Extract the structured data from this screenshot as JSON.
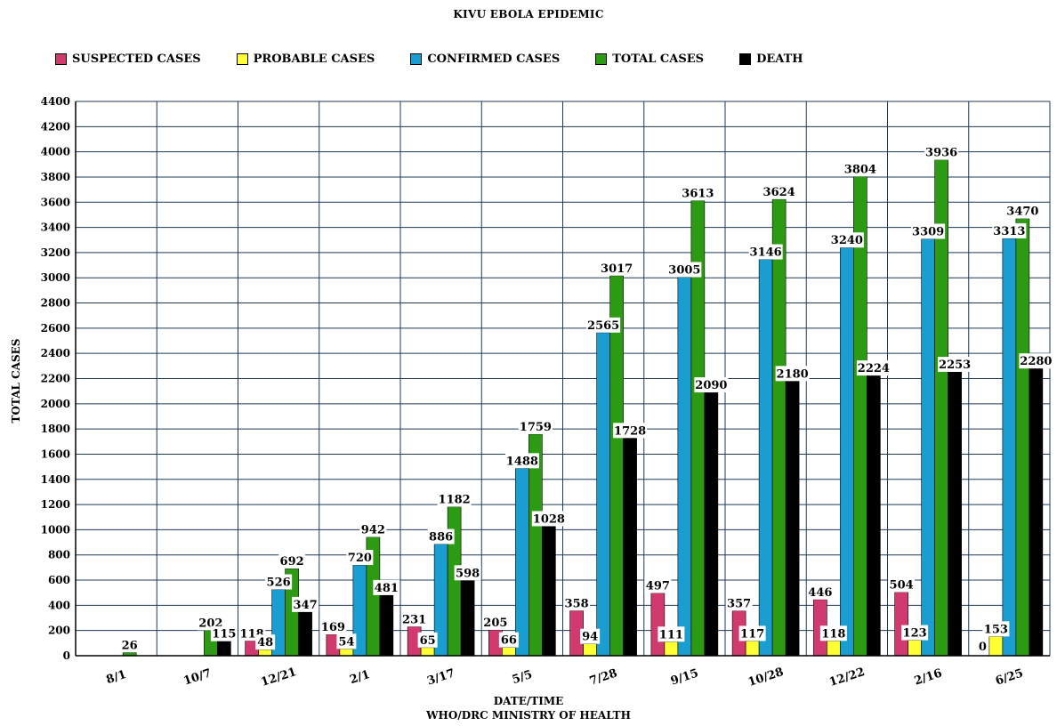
{
  "chart_data": {
    "type": "bar",
    "title": "KIVU EBOLA EPIDEMIC",
    "xlabel": "DATE/TIME",
    "source": "WHO/DRC MINISTRY OF HEALTH",
    "ylabel": "TOTAL CASES",
    "ylim": [
      0,
      4400
    ],
    "yticks": [
      0,
      200,
      400,
      600,
      800,
      1000,
      1200,
      1400,
      1600,
      1800,
      2000,
      2200,
      2400,
      2600,
      2800,
      3000,
      3200,
      3400,
      3600,
      3800,
      4000,
      4200,
      4400
    ],
    "grid": true,
    "legend_position": "top",
    "categories": [
      "8/1",
      "10/7",
      "12/21",
      "2/1",
      "3/17",
      "5/5",
      "7/28",
      "9/15",
      "10/28",
      "12/22",
      "2/16",
      "6/25"
    ],
    "series": [
      {
        "name": "SUSPECTED CASES",
        "color": "#d03a6e",
        "values": [
          null,
          null,
          118,
          169,
          231,
          205,
          358,
          497,
          357,
          446,
          504,
          0
        ]
      },
      {
        "name": "PROBABLE CASES",
        "color": "#ffff33",
        "values": [
          null,
          null,
          48,
          54,
          65,
          66,
          94,
          111,
          117,
          118,
          123,
          153
        ]
      },
      {
        "name": "CONFIRMED CASES",
        "color": "#1a9dd0",
        "values": [
          null,
          null,
          526,
          720,
          886,
          1488,
          2565,
          3005,
          3146,
          3240,
          3309,
          3313
        ]
      },
      {
        "name": "TOTAL CASES",
        "color": "#2c9a12",
        "values": [
          26,
          202,
          692,
          942,
          1182,
          1759,
          3017,
          3613,
          3624,
          3804,
          3936,
          3470
        ]
      },
      {
        "name": "DEATH",
        "color": "#000000",
        "values": [
          null,
          115,
          347,
          481,
          598,
          1028,
          1728,
          2090,
          2180,
          2224,
          2253,
          2280
        ]
      }
    ]
  }
}
